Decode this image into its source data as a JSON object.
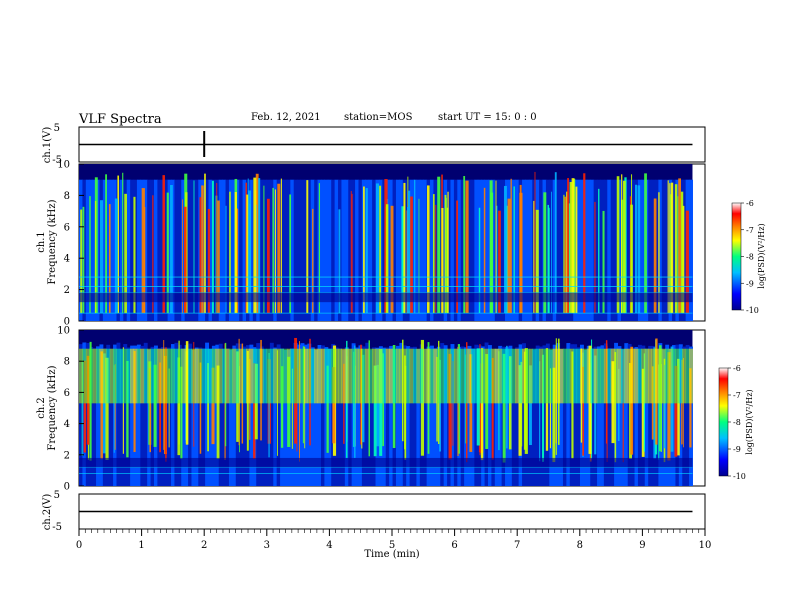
{
  "header": {
    "title": "VLF Spectra",
    "date": "Feb. 12, 2021",
    "station": "station=MOS",
    "start_ut": "start UT =  15: 0 : 0"
  },
  "chart_data": [
    {
      "type": "line",
      "title": "",
      "ylabel": "ch.1(V)",
      "yticks": [
        "5",
        "-5"
      ],
      "ylim": [
        -5,
        5
      ],
      "xlim": [
        0,
        10
      ],
      "series": [
        {
          "values": [
            [
              0,
              0
            ],
            [
              9.8,
              0
            ]
          ]
        }
      ]
    },
    {
      "type": "heatmap",
      "ylabel": "ch.1\nFrequency (kHz)",
      "xlim": [
        0,
        10
      ],
      "ylim": [
        0,
        10
      ],
      "yticks": [
        "0",
        "2",
        "4",
        "6",
        "8",
        "10"
      ],
      "data_extent_x": [
        0,
        9.8
      ],
      "description_bands_khz": [
        0.5,
        1.8,
        2.2
      ],
      "colorbar": {
        "label": "log(PSD)(V²/Hz)",
        "range": [
          -10,
          -6
        ],
        "ticks": [
          "-6",
          "-7",
          "-8",
          "-9",
          "-10"
        ],
        "colormap": [
          "#000090",
          "#0000ff",
          "#00c0ff",
          "#00ff80",
          "#ffff00",
          "#ff8000",
          "#ff0000",
          "#ffffff"
        ]
      }
    },
    {
      "type": "heatmap",
      "ylabel": "ch.2\nFrequency (kHz)",
      "xlim": [
        0,
        10
      ],
      "ylim": [
        0,
        10
      ],
      "yticks": [
        "0",
        "2",
        "4",
        "6",
        "8",
        "10"
      ],
      "data_extent_x": [
        0,
        9.8
      ],
      "colorbar": {
        "label": "log(PSD)(V²/Hz)",
        "range": [
          -10,
          -6
        ],
        "ticks": [
          "-6",
          "-7",
          "-8",
          "-9",
          "-10"
        ]
      }
    },
    {
      "type": "line",
      "ylabel": "ch.2(V)",
      "yticks": [
        "5",
        "-5"
      ],
      "ylim": [
        -5,
        5
      ],
      "xlim": [
        0,
        10
      ],
      "xlabel": "Time (min)",
      "xticks": [
        "0",
        "1",
        "2",
        "3",
        "4",
        "5",
        "6",
        "7",
        "8",
        "9",
        "10"
      ],
      "series": [
        {
          "values": [
            [
              0,
              0
            ],
            [
              9.8,
              0
            ]
          ]
        }
      ]
    }
  ]
}
